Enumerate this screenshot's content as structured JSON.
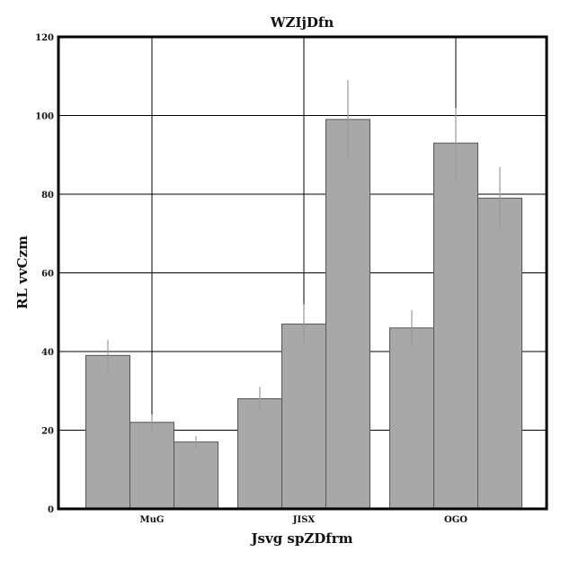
{
  "chart_data": {
    "type": "bar",
    "title": "WZIjDfn",
    "xlabel": "Jsvg spZDfrm",
    "ylabel": "RL vvCzm",
    "categories": [
      "MuG",
      "JISX",
      "OGO"
    ],
    "series": [
      {
        "values": [
          39,
          28,
          46
        ],
        "errors": [
          4,
          3,
          4.5
        ]
      },
      {
        "values": [
          22,
          47,
          93
        ],
        "errors": [
          2,
          5,
          9
        ]
      },
      {
        "values": [
          17,
          99,
          79
        ],
        "errors": [
          1.5,
          10,
          8
        ]
      }
    ],
    "ylim": [
      0,
      120
    ],
    "yticks": [
      0,
      20,
      40,
      60,
      80,
      100,
      120
    ],
    "grid": true,
    "colors": {
      "bar": "#a8a8a8",
      "bar_edge": "#555555",
      "error": "#999999",
      "grid": "#000000",
      "frame": "#000000"
    }
  }
}
